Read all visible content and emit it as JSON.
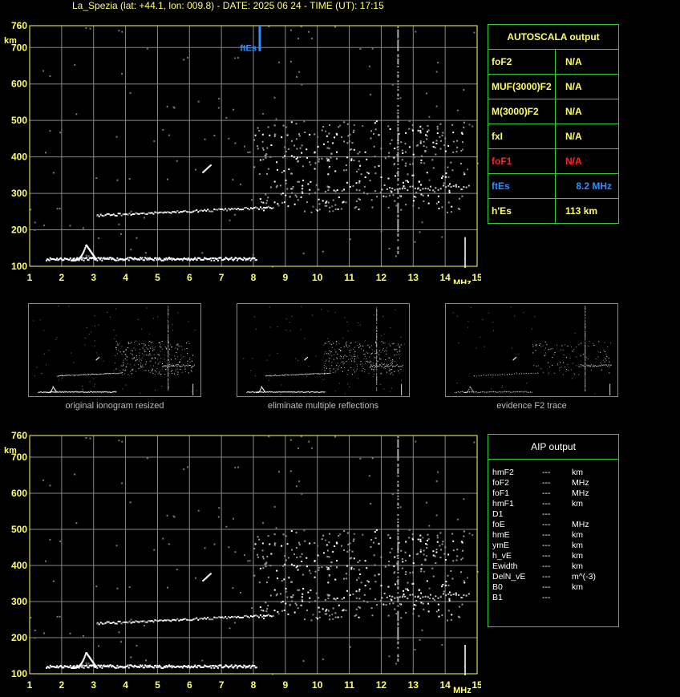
{
  "header": {
    "title": "La_Spezia (lat: +44.1, lon: 009.8) - DATE: 2025 06 24 - TIME (UT): 17:15"
  },
  "colors": {
    "grid": "#888888",
    "axis": "#ffff66",
    "border": "#33cc33",
    "trace": "#ffffff",
    "ftes": "#2f8fff",
    "fof1": "#ff2222"
  },
  "chart_data": [
    {
      "type": "scatter",
      "x_ticks": [
        "1",
        "2",
        "3",
        "4",
        "5",
        "6",
        "7",
        "8",
        "9",
        "10",
        "11",
        "12",
        "13",
        "14",
        "15"
      ],
      "y_ticks": [
        "100",
        "200",
        "300",
        "400",
        "500",
        "600",
        "700",
        "760"
      ],
      "x_unit": "MHz",
      "y_unit": "km",
      "xlim": [
        1,
        15
      ],
      "ylim": [
        100,
        760
      ],
      "grid": true,
      "annotation": {
        "label": "ftEs",
        "x": 8.2
      },
      "traces": {
        "es_low": [
          [
            1.5,
            110
          ],
          [
            8.1,
            122
          ]
        ],
        "cusp": [
          [
            2.3,
            118
          ],
          [
            2.7,
            162
          ],
          [
            3.0,
            125
          ]
        ],
        "f_layer": [
          [
            3.1,
            240
          ],
          [
            8.6,
            265
          ]
        ],
        "oblique": [
          [
            6.4,
            360
          ],
          [
            6.6,
            378
          ]
        ]
      }
    },
    {
      "type": "scatter",
      "x_ticks": [
        "1",
        "2",
        "3",
        "4",
        "5",
        "6",
        "7",
        "8",
        "9",
        "10",
        "11",
        "12",
        "13",
        "14",
        "15"
      ],
      "y_ticks": [
        "100",
        "200",
        "300",
        "400",
        "500",
        "600",
        "700",
        "760"
      ],
      "x_unit": "MHz",
      "y_unit": "km",
      "xlim": [
        1,
        15
      ],
      "ylim": [
        100,
        760
      ],
      "grid": true
    }
  ],
  "autoscala": {
    "title": "AUTOSCALA output",
    "rows": [
      {
        "name": "foF2",
        "value": "N/A",
        "color": "#ffff66"
      },
      {
        "name": "MUF(3000)F2",
        "value": "N/A",
        "color": "#ffff66"
      },
      {
        "name": "M(3000)F2",
        "value": "N/A",
        "color": "#ffff66"
      },
      {
        "name": "fxI",
        "value": "N/A",
        "color": "#ffff66"
      },
      {
        "name": "foF1",
        "value": "N/A",
        "color": "#ff2222"
      },
      {
        "name": "ftEs",
        "value": "8.2 MHz",
        "color": "#2f8fff"
      },
      {
        "name": "h'Es",
        "value": "113     km",
        "color": "#ffff66"
      }
    ]
  },
  "thumbnails": [
    {
      "caption": "original ionogram resized"
    },
    {
      "caption": "eliminate multiple reflections"
    },
    {
      "caption": "evidence F2 trace"
    }
  ],
  "aip": {
    "title": "AIP output",
    "rows": [
      {
        "name": "hmF2",
        "dash": "---",
        "unit": "km"
      },
      {
        "name": "foF2",
        "dash": "---",
        "unit": "MHz"
      },
      {
        "name": "foF1",
        "dash": "---",
        "unit": "MHz"
      },
      {
        "name": "hmF1",
        "dash": "---",
        "unit": "km"
      },
      {
        "name": "D1",
        "dash": "---",
        "unit": ""
      },
      {
        "name": "foE",
        "dash": "---",
        "unit": "MHz"
      },
      {
        "name": "hmE",
        "dash": "---",
        "unit": "km"
      },
      {
        "name": "ymE",
        "dash": "---",
        "unit": "km"
      },
      {
        "name": "h_vE",
        "dash": "---",
        "unit": "km"
      },
      {
        "name": "Ewidth",
        "dash": "---",
        "unit": "km"
      },
      {
        "name": "DelN_vE",
        "dash": "---",
        "unit": "m^(-3)"
      },
      {
        "name": "B0",
        "dash": "---",
        "unit": "km"
      },
      {
        "name": "B1",
        "dash": "---",
        "unit": ""
      }
    ]
  }
}
